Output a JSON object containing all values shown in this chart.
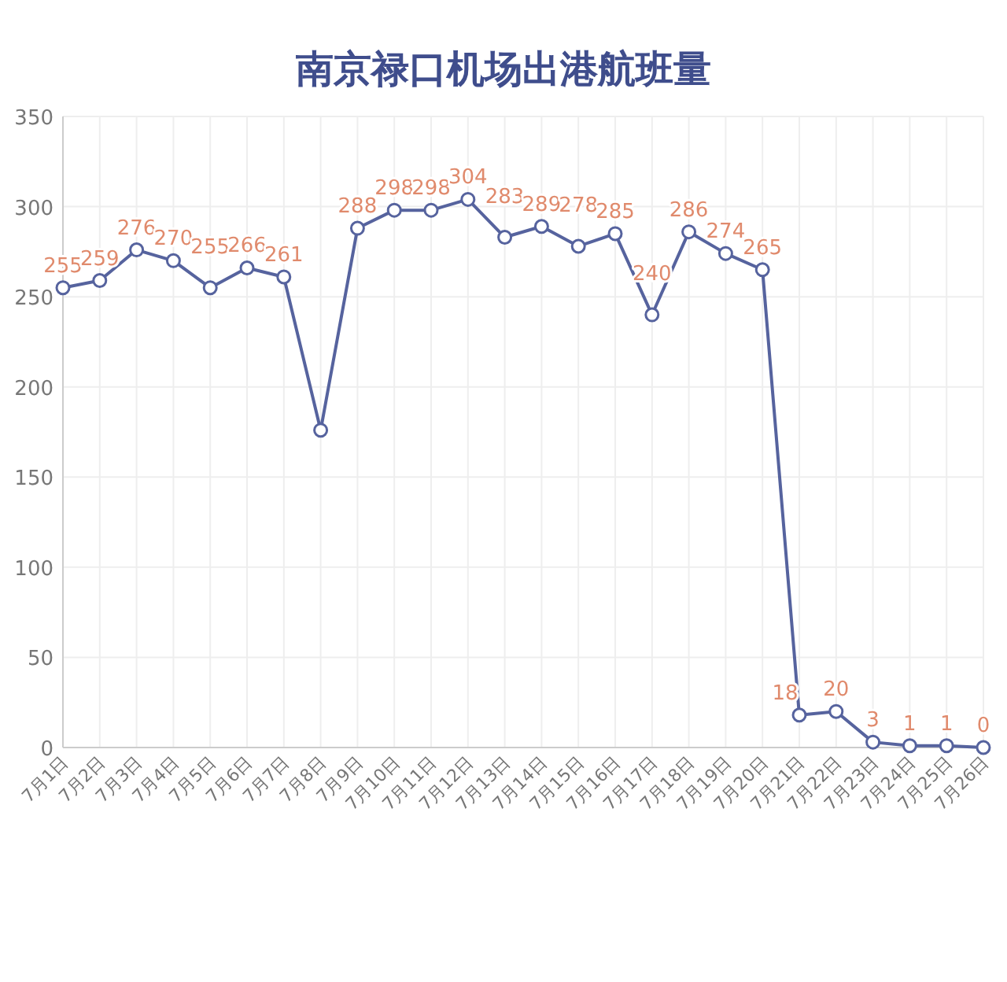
{
  "chart_data": {
    "type": "line",
    "title": "南京禄口机场出港航班量",
    "categories": [
      "7月1日",
      "7月2日",
      "7月3日",
      "7月4日",
      "7月5日",
      "7月6日",
      "7月7日",
      "7月8日",
      "7月9日",
      "7月10日",
      "7月11日",
      "7月12日",
      "7月13日",
      "7月14日",
      "7月15日",
      "7月16日",
      "7月17日",
      "7月18日",
      "7月19日",
      "7月20日",
      "7月21日",
      "7月22日",
      "7月23日",
      "7月24日",
      "7月25日",
      "7月26日"
    ],
    "series": [
      {
        "color": "#56639e",
        "values": [
          255,
          259,
          276,
          270,
          255,
          266,
          261,
          176,
          288,
          298,
          298,
          304,
          283,
          289,
          278,
          285,
          240,
          286,
          274,
          265,
          18,
          20,
          3,
          1,
          1,
          0
        ],
        "value_labels": [
          "255",
          "259",
          "276",
          "270",
          "255",
          "266",
          "261",
          null,
          "288",
          "298",
          "298",
          "304",
          "283",
          "289",
          "278",
          "285",
          "240",
          "286",
          "274",
          "265",
          "18",
          "20",
          "3",
          "1",
          "1",
          "0"
        ]
      }
    ],
    "ylim": [
      0,
      350
    ],
    "yticks": [
      0,
      50,
      100,
      150,
      200,
      250,
      300,
      350
    ],
    "grid": true,
    "marker": "circle",
    "line_style": "solid"
  }
}
